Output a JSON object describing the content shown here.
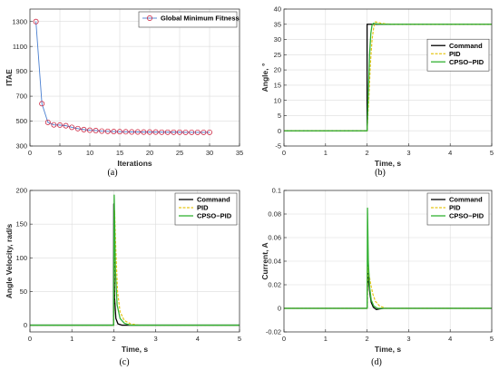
{
  "colors": {
    "command": "#000000",
    "pid": "#e6c619",
    "cpso_pid": "#33b233",
    "fitness": "#4a7fd0",
    "fitness_marker": "#c8102e",
    "grid": "#dcdcdc",
    "axes": "#262626"
  },
  "chart_data": [
    {
      "type": "line",
      "panel_label": "(a)",
      "xlabel": "Iterations",
      "ylabel": "ITAE",
      "xlim": [
        0,
        35
      ],
      "ylim": [
        300,
        1400
      ],
      "xticks": [
        0,
        5,
        10,
        15,
        20,
        25,
        30,
        35
      ],
      "yticks": [
        300,
        500,
        700,
        900,
        1100,
        1300
      ],
      "grid": true,
      "legend_position": "top-right",
      "series": [
        {
          "name": "Global Minimum Fitness",
          "color_key": "fitness",
          "marker": "circle",
          "x": [
            1,
            2,
            3,
            4,
            5,
            6,
            7,
            8,
            9,
            10,
            11,
            12,
            13,
            14,
            15,
            16,
            17,
            18,
            19,
            20,
            21,
            22,
            23,
            24,
            25,
            26,
            27,
            28,
            29,
            30
          ],
          "y": [
            1300,
            640,
            490,
            470,
            468,
            463,
            450,
            440,
            432,
            427,
            424,
            420,
            418,
            416,
            415,
            414,
            413,
            413,
            412,
            412,
            412,
            411,
            411,
            411,
            411,
            410,
            410,
            410,
            410,
            410
          ]
        }
      ]
    },
    {
      "type": "line",
      "panel_label": "(b)",
      "xlabel": "Time, s",
      "ylabel": "Angle, °",
      "xlim": [
        0,
        5
      ],
      "ylim": [
        -5,
        40
      ],
      "xticks": [
        0,
        1,
        2,
        3,
        4,
        5
      ],
      "yticks": [
        -5,
        0,
        5,
        10,
        15,
        20,
        25,
        30,
        35,
        40
      ],
      "grid": true,
      "legend_position": "right",
      "series": [
        {
          "name": "Command",
          "color_key": "command",
          "dash": "solid",
          "width": 1.3,
          "x": [
            0,
            2,
            2,
            5
          ],
          "y": [
            0,
            0,
            35,
            35
          ]
        },
        {
          "name": "PID",
          "color_key": "pid",
          "dash": "dashed",
          "width": 1.2,
          "x": [
            0,
            2.0,
            2.04,
            2.08,
            2.12,
            2.16,
            2.2,
            2.26,
            2.35,
            2.5,
            2.7,
            3.0,
            5.0
          ],
          "y": [
            0,
            0,
            10,
            22,
            30,
            34,
            35.8,
            35.6,
            35.3,
            35.1,
            35.0,
            35.0,
            35.0
          ]
        },
        {
          "name": "CPSO−PID",
          "color_key": "cpso_pid",
          "dash": "solid",
          "width": 1.3,
          "x": [
            0,
            2.0,
            2.03,
            2.06,
            2.09,
            2.12,
            2.15,
            2.2,
            2.3,
            2.45,
            2.7,
            5.0
          ],
          "y": [
            0,
            0,
            12,
            25,
            32,
            34.8,
            35.3,
            35.2,
            35.05,
            35.0,
            35.0,
            35.0
          ]
        }
      ]
    },
    {
      "type": "line",
      "panel_label": "(c)",
      "xlabel": "Time, s",
      "ylabel": "Angle Velocity, rad/s",
      "xlim": [
        0,
        5
      ],
      "ylim": [
        -10,
        200
      ],
      "xticks": [
        0,
        1,
        2,
        3,
        4,
        5
      ],
      "yticks": [
        0,
        50,
        100,
        150,
        200
      ],
      "grid": true,
      "legend_position": "top-right",
      "series": [
        {
          "name": "Command",
          "color_key": "command",
          "dash": "solid",
          "width": 1.3,
          "x": [
            0,
            1.995,
            2.0,
            2.02,
            2.05,
            2.1,
            2.2,
            2.3,
            5.0
          ],
          "y": [
            0,
            0,
            180,
            40,
            10,
            2,
            0,
            0,
            0
          ]
        },
        {
          "name": "PID",
          "color_key": "pid",
          "dash": "dashed",
          "width": 1.2,
          "x": [
            0,
            2.0,
            2.02,
            2.05,
            2.09,
            2.15,
            2.25,
            2.4,
            2.6,
            5.0
          ],
          "y": [
            0,
            0,
            170,
            110,
            50,
            20,
            7,
            2,
            0,
            0
          ]
        },
        {
          "name": "CPSO−PID",
          "color_key": "cpso_pid",
          "dash": "solid",
          "width": 1.3,
          "x": [
            0,
            1.998,
            2.01,
            2.04,
            2.08,
            2.15,
            2.25,
            2.4,
            5.0
          ],
          "y": [
            0,
            0,
            193,
            80,
            30,
            10,
            3,
            0,
            0
          ]
        }
      ]
    },
    {
      "type": "line",
      "panel_label": "(d)",
      "xlabel": "Time, s",
      "ylabel": "Current, A",
      "xlim": [
        0,
        5
      ],
      "ylim": [
        -0.02,
        0.1
      ],
      "xticks": [
        0,
        1,
        2,
        3,
        4,
        5
      ],
      "yticks": [
        -0.02,
        0,
        0.02,
        0.04,
        0.06,
        0.08,
        0.1
      ],
      "grid": true,
      "legend_position": "top-right",
      "series": [
        {
          "name": "Command",
          "color_key": "command",
          "dash": "solid",
          "width": 1.3,
          "x": [
            0,
            2.0,
            2.02,
            2.04,
            2.07,
            2.1,
            2.15,
            2.22,
            2.3,
            2.4,
            5.0
          ],
          "y": [
            0,
            0,
            0.04,
            0.022,
            0.012,
            0.005,
            0.001,
            -0.001,
            -0.0005,
            0,
            0
          ]
        },
        {
          "name": "PID",
          "color_key": "pid",
          "dash": "dashed",
          "width": 1.2,
          "x": [
            0,
            2.0,
            2.02,
            2.05,
            2.09,
            2.14,
            2.2,
            2.3,
            2.45,
            2.6,
            5.0
          ],
          "y": [
            0,
            0,
            0.035,
            0.028,
            0.02,
            0.012,
            0.006,
            0.002,
            0,
            0,
            0
          ]
        },
        {
          "name": "CPSO−PID",
          "color_key": "cpso_pid",
          "dash": "solid",
          "width": 1.3,
          "x": [
            0,
            2.0,
            2.01,
            2.03,
            2.06,
            2.1,
            2.16,
            2.25,
            2.4,
            5.0
          ],
          "y": [
            0,
            0,
            0.085,
            0.04,
            0.018,
            0.007,
            0.002,
            0,
            0,
            0
          ]
        }
      ]
    }
  ]
}
